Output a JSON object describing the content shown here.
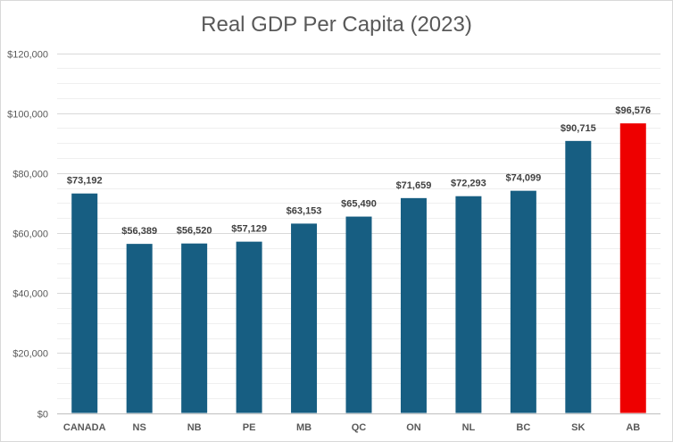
{
  "chart_data": {
    "type": "bar",
    "title": "Real GDP Per Capita (2023)",
    "xlabel": "",
    "ylabel": "",
    "categories": [
      "CANADA",
      "NS",
      "NB",
      "PE",
      "MB",
      "QC",
      "ON",
      "NL",
      "BC",
      "SK",
      "AB"
    ],
    "values": [
      73192,
      56389,
      56520,
      57129,
      63153,
      65490,
      71659,
      72293,
      74099,
      90715,
      96576
    ],
    "data_labels": [
      "$73,192",
      "$56,389",
      "$56,520",
      "$57,129",
      "$63,153",
      "$65,490",
      "$71,659",
      "$72,293",
      "$74,099",
      "$90,715",
      "$96,576"
    ],
    "ylim": [
      0,
      120000
    ],
    "yticks": [
      0,
      20000,
      40000,
      60000,
      80000,
      100000,
      120000
    ],
    "ytick_labels": [
      "$0",
      "$20,000",
      "$40,000",
      "$60,000",
      "$80,000",
      "$100,000",
      "$120,000"
    ],
    "grid": true,
    "legend": "none",
    "colors": {
      "bar": "#175e82",
      "highlight": "#ee0000",
      "highlight_category": "AB",
      "grid_major": "#d9d9d9",
      "grid_minor": "#efefef"
    }
  }
}
